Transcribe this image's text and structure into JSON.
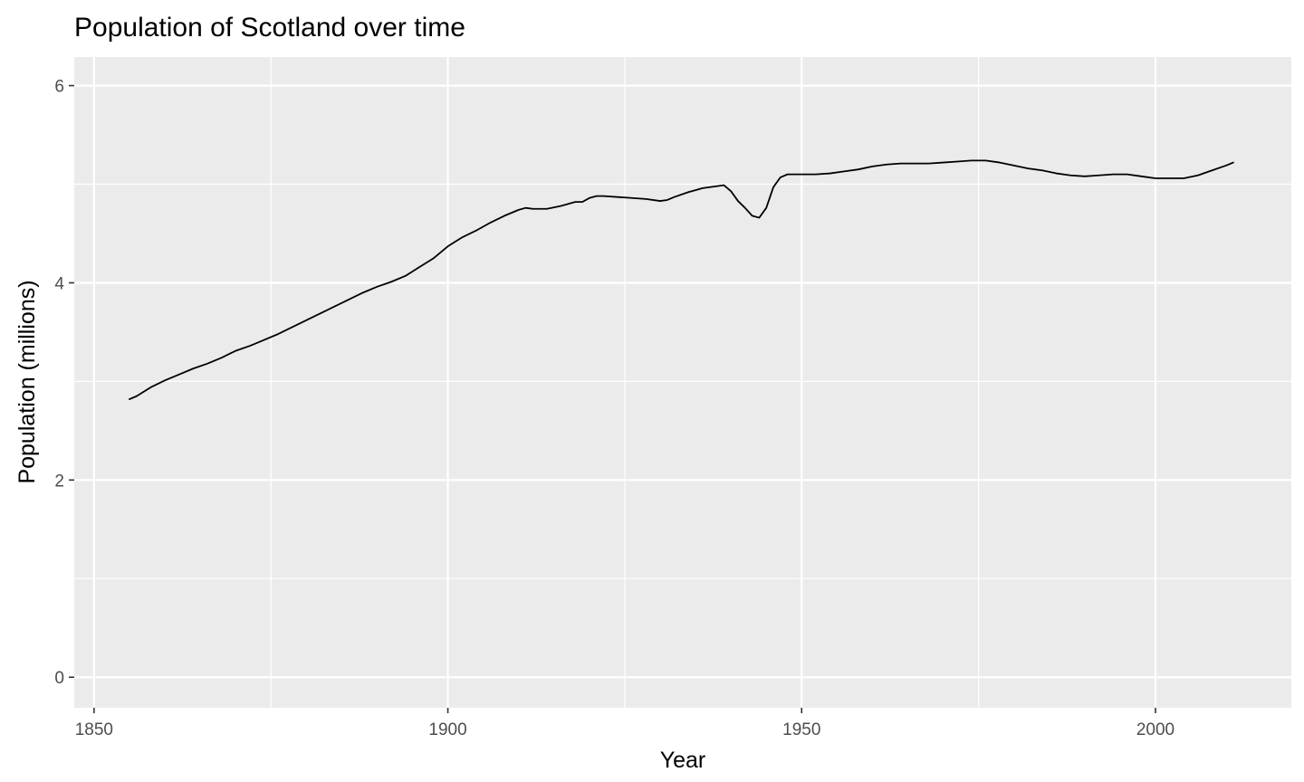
{
  "chart_data": {
    "type": "line",
    "title": "Population of Scotland over time",
    "xlabel": "Year",
    "ylabel": "Population (millions)",
    "xlim": [
      1847.2,
      2019.2
    ],
    "ylim": [
      -0.31,
      6.29
    ],
    "x_ticks": [
      1850,
      1900,
      1950,
      2000
    ],
    "x_tick_labels": [
      "1850",
      "1900",
      "1950",
      "2000"
    ],
    "x_minor_ticks": [
      1875,
      1925,
      1975
    ],
    "y_ticks": [
      0,
      2,
      4,
      6
    ],
    "y_tick_labels": [
      "0",
      "2",
      "4",
      "6"
    ],
    "y_minor_ticks": [
      1,
      3,
      5
    ],
    "grid": true,
    "legend": "none",
    "colors": {
      "panel_background": "#ebebeb",
      "grid": "#ffffff",
      "line": "#000000",
      "tick_label": "#4d4d4d",
      "tick_mark": "#333333"
    },
    "series": [
      {
        "x": [
          1855,
          1856,
          1858,
          1860,
          1862,
          1864,
          1866,
          1868,
          1870,
          1872,
          1874,
          1876,
          1878,
          1880,
          1882,
          1884,
          1886,
          1888,
          1890,
          1892,
          1894,
          1896,
          1898,
          1900,
          1902,
          1904,
          1906,
          1908,
          1910,
          1911,
          1912,
          1914,
          1916,
          1918,
          1919,
          1920,
          1921,
          1922,
          1924,
          1926,
          1928,
          1930,
          1931,
          1932,
          1934,
          1936,
          1938,
          1939,
          1940,
          1941,
          1942,
          1943,
          1944,
          1945,
          1946,
          1947,
          1948,
          1950,
          1952,
          1954,
          1956,
          1958,
          1960,
          1962,
          1964,
          1966,
          1968,
          1970,
          1972,
          1974,
          1975,
          1976,
          1978,
          1980,
          1982,
          1984,
          1986,
          1988,
          1990,
          1992,
          1994,
          1996,
          1998,
          2000,
          2002,
          2004,
          2006,
          2008,
          2010,
          2011
        ],
        "y": [
          2.82,
          2.85,
          2.94,
          3.01,
          3.07,
          3.13,
          3.18,
          3.24,
          3.31,
          3.36,
          3.42,
          3.48,
          3.55,
          3.62,
          3.69,
          3.76,
          3.83,
          3.9,
          3.96,
          4.01,
          4.07,
          4.16,
          4.25,
          4.37,
          4.46,
          4.53,
          4.61,
          4.68,
          4.74,
          4.76,
          4.75,
          4.75,
          4.78,
          4.82,
          4.82,
          4.86,
          4.88,
          4.88,
          4.87,
          4.86,
          4.85,
          4.83,
          4.84,
          4.87,
          4.92,
          4.96,
          4.98,
          4.99,
          4.93,
          4.83,
          4.76,
          4.68,
          4.66,
          4.76,
          4.97,
          5.07,
          5.1,
          5.1,
          5.1,
          5.11,
          5.13,
          5.15,
          5.18,
          5.2,
          5.21,
          5.21,
          5.21,
          5.22,
          5.23,
          5.24,
          5.24,
          5.24,
          5.22,
          5.19,
          5.16,
          5.14,
          5.11,
          5.09,
          5.08,
          5.09,
          5.1,
          5.1,
          5.08,
          5.06,
          5.06,
          5.06,
          5.09,
          5.14,
          5.19,
          5.22
        ]
      }
    ]
  }
}
